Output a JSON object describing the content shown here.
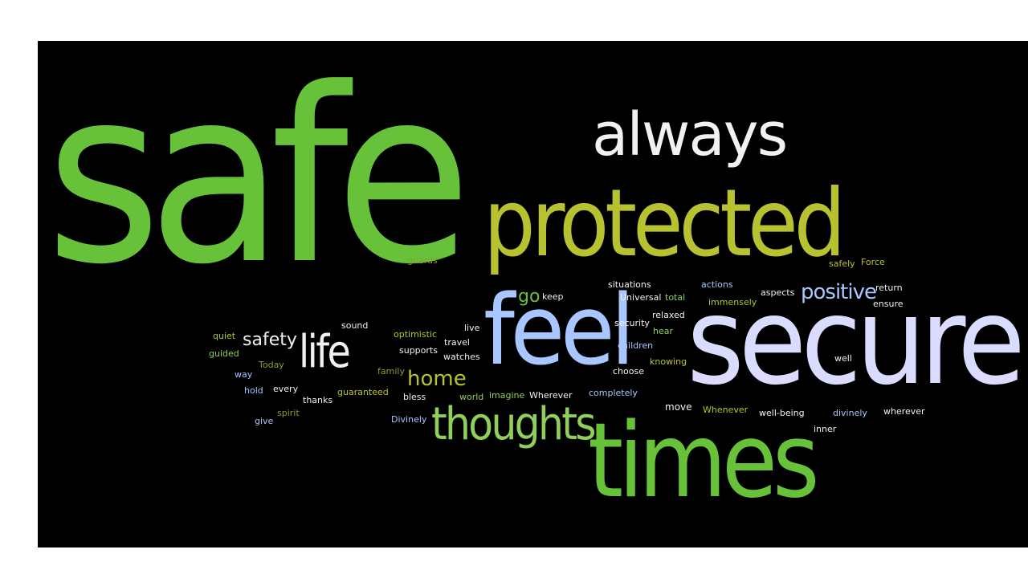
{
  "palette": {
    "background_page": "#ffffff",
    "background_cloud": "#000000",
    "green": "#67c23a",
    "yellow_green": "#b8c230",
    "light_blue": "#a8c6ff",
    "lavender": "#d9dcff",
    "white": "#f1f1f1",
    "olive": "#8c9b35",
    "pale_green": "#8fcf5a"
  },
  "words": {
    "safe": "safe",
    "always": "always",
    "protected": "protected",
    "feel": "feel",
    "secure": "secure",
    "times": "times",
    "thoughts": "thoughts",
    "life": "life",
    "safety": "safety",
    "home": "home",
    "positive": "positive",
    "go": "go",
    "keep": "keep",
    "guards": "guards",
    "safely": "safely",
    "force": "Force",
    "situations": "situations",
    "actions": "actions",
    "aspects": "aspects",
    "return": "return",
    "universal": "Universal",
    "total": "total",
    "immensely": "immensely",
    "ensure": "ensure",
    "relaxed": "relaxed",
    "security": "security",
    "hear": "hear",
    "children": "children",
    "knowing": "knowing",
    "choose": "choose",
    "completely": "completely",
    "well": "well",
    "quiet": "quiet",
    "sound": "sound",
    "optimistic": "optimistic",
    "live": "live",
    "travel": "travel",
    "supports": "supports",
    "watches": "watches",
    "guided": "guided",
    "today": "Today",
    "way": "way",
    "family": "family",
    "hold": "hold",
    "every": "every",
    "thanks": "thanks",
    "guaranteed": "guaranteed",
    "bless": "bless",
    "world": "world",
    "imagine": "imagine",
    "wherever_cap": "Wherever",
    "spirit": "spirit",
    "give": "give",
    "divinely_cap": "Divinely",
    "move": "move",
    "whenever": "Whenever",
    "well_being": "well-being",
    "divinely": "divinely",
    "wherever": "wherever",
    "inner": "inner"
  }
}
